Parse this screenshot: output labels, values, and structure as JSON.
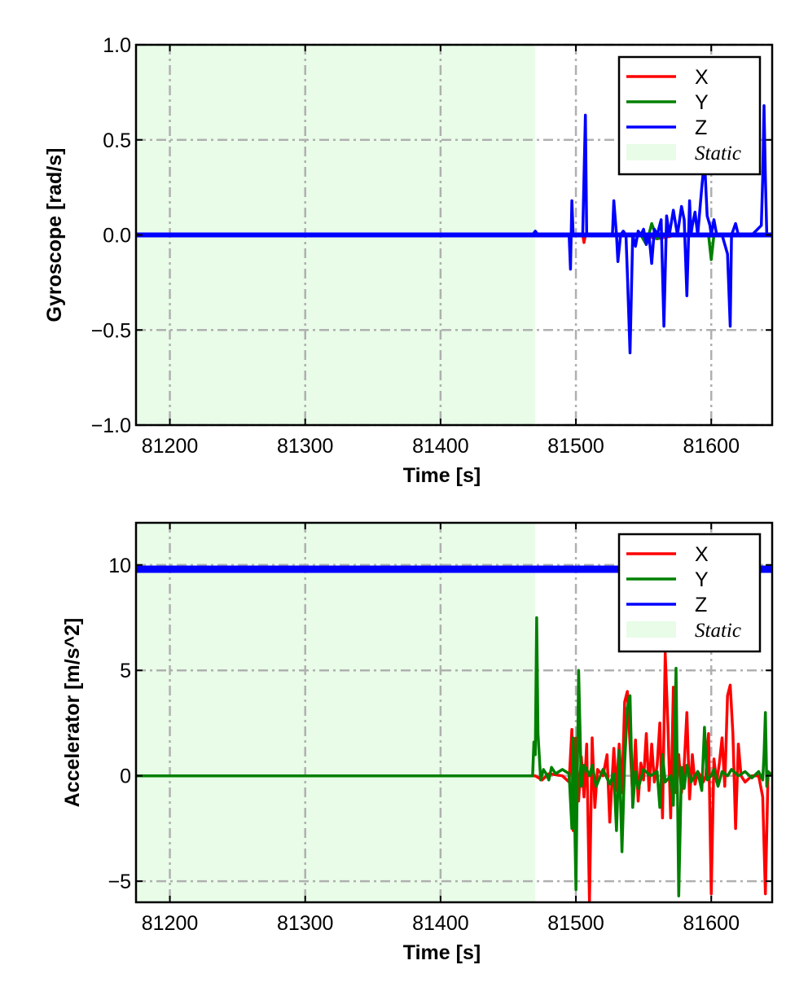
{
  "chart_data": [
    {
      "type": "line",
      "ylabel": "Gyroscope [rad/s]",
      "xlabel": "Time [s]",
      "xlim": [
        81175,
        81645
      ],
      "ylim": [
        -1.0,
        1.0
      ],
      "xticks": [
        81200,
        81300,
        81400,
        81500,
        81600
      ],
      "xtick_labels": [
        "81200",
        "81300",
        "81400",
        "81500",
        "81600"
      ],
      "yticks": [
        1.0,
        0.5,
        0.0,
        -0.5,
        -1.0
      ],
      "ytick_labels": [
        "1.0",
        "0.5",
        "0.0",
        "−0.5",
        "−1.0"
      ],
      "grid": true,
      "legend_position": "top-right",
      "static_region": {
        "label": "Static",
        "start": 81175,
        "end": 81470,
        "color": "#e8fce8"
      },
      "series": [
        {
          "name": "X",
          "color": "#ff0000",
          "x": [
            81175,
            81470,
            81478,
            81495,
            81505,
            81506,
            81507,
            81530,
            81545,
            81560,
            81575,
            81600,
            81620,
            81645
          ],
          "y": [
            0,
            0,
            0.005,
            0,
            0,
            -0.04,
            0,
            0,
            0.005,
            -0.02,
            0,
            0,
            0,
            0
          ]
        },
        {
          "name": "Y",
          "color": "#008000",
          "x": [
            81175,
            81470,
            81480,
            81548,
            81552,
            81556,
            81560,
            81565,
            81598,
            81600,
            81602,
            81605,
            81620,
            81645
          ],
          "y": [
            0,
            0,
            0.005,
            0,
            -0.05,
            0.06,
            -0.02,
            0,
            0,
            -0.13,
            0,
            0,
            0,
            0
          ]
        },
        {
          "name": "Z",
          "color": "#0000ff",
          "x": [
            81175,
            81468,
            81470,
            81472,
            81480,
            81495,
            81496,
            81497,
            81498,
            81500,
            81505,
            81507,
            81508,
            81510,
            81520,
            81527,
            81528,
            81530,
            81531,
            81533,
            81535,
            81537,
            81538,
            81540,
            81542,
            81544,
            81546,
            81548,
            81550,
            81552,
            81554,
            81556,
            81558,
            81560,
            81563,
            81565,
            81567,
            81569,
            81572,
            81575,
            81578,
            81580,
            81582,
            81584,
            81585,
            81586,
            81588,
            81590,
            81593,
            81595,
            81597,
            81599,
            81600,
            81602,
            81604,
            81606,
            81608,
            81612,
            81614,
            81615,
            81616,
            81618,
            81620,
            81622,
            81625,
            81630,
            81637,
            81638,
            81639,
            81640,
            81641,
            81642,
            81645
          ],
          "y": [
            0,
            0,
            0.02,
            0,
            0,
            0,
            -0.18,
            0.18,
            0,
            0,
            0,
            0.63,
            0,
            0,
            0,
            0,
            0.18,
            0,
            -0.14,
            0,
            0.02,
            0,
            -0.2,
            -0.62,
            0,
            -0.06,
            0.02,
            0,
            0.03,
            -0.05,
            0,
            -0.15,
            0.03,
            0,
            0.08,
            -0.48,
            0.1,
            0.0,
            0.13,
            0,
            0.15,
            0.08,
            -0.32,
            0.18,
            0.0,
            0.05,
            0.12,
            0.0,
            0.25,
            0.4,
            0.1,
            0.05,
            0.0,
            0.08,
            0.0,
            0.0,
            0.0,
            -0.1,
            -0.48,
            0.0,
            0.02,
            0.06,
            0.0,
            0.0,
            0.0,
            0.0,
            0.05,
            0.3,
            0.68,
            0.3,
            0.0,
            0.0,
            0.0
          ]
        }
      ],
      "legend": [
        {
          "label": "X",
          "color": "#ff0000",
          "kind": "line"
        },
        {
          "label": "Y",
          "color": "#008000",
          "kind": "line"
        },
        {
          "label": "Z",
          "color": "#0000ff",
          "kind": "line"
        },
        {
          "label": "Static",
          "color": "#e8fce8",
          "kind": "patch"
        }
      ]
    },
    {
      "type": "line",
      "ylabel": "Accelerator [m/s^2]",
      "xlabel": "Time [s]",
      "xlim": [
        81175,
        81645
      ],
      "ylim": [
        -6,
        12
      ],
      "xticks": [
        81200,
        81300,
        81400,
        81500,
        81600
      ],
      "xtick_labels": [
        "81200",
        "81300",
        "81400",
        "81500",
        "81600"
      ],
      "yticks": [
        10,
        5,
        0,
        -5
      ],
      "ytick_labels": [
        "10",
        "5",
        "0",
        "−5"
      ],
      "grid": true,
      "legend_position": "top-right",
      "static_region": {
        "label": "Static",
        "start": 81175,
        "end": 81470,
        "color": "#e8fce8"
      },
      "series": [
        {
          "name": "X",
          "color": "#ff0000",
          "x": [
            81175,
            81470,
            81475,
            81480,
            81490,
            81495,
            81497,
            81498,
            81500,
            81502,
            81504,
            81506,
            81508,
            81510,
            81512,
            81514,
            81516,
            81520,
            81523,
            81525,
            81528,
            81530,
            81532,
            81534,
            81536,
            81538,
            81540,
            81542,
            81544,
            81546,
            81548,
            81550,
            81552,
            81554,
            81556,
            81558,
            81560,
            81562,
            81564,
            81566,
            81568,
            81570,
            81572,
            81574,
            81576,
            81578,
            81580,
            81582,
            81584,
            81586,
            81588,
            81590,
            81592,
            81594,
            81596,
            81598,
            81600,
            81602,
            81604,
            81606,
            81608,
            81610,
            81612,
            81614,
            81616,
            81618,
            81620,
            81622,
            81625,
            81630,
            81635,
            81638,
            81640,
            81642,
            81645
          ],
          "y": [
            0,
            0,
            -0.2,
            0.1,
            0,
            -0.3,
            2.2,
            -2.6,
            1.8,
            -1.2,
            0.9,
            -1.0,
            1.5,
            -6.0,
            1.8,
            -1.5,
            0.3,
            0,
            1.0,
            -2.2,
            1.3,
            -0.7,
            1.5,
            -0.8,
            3.5,
            4.0,
            1.5,
            -1.0,
            1.7,
            -1.2,
            0.6,
            -0.2,
            2.0,
            -0.7,
            1.5,
            -0.3,
            0.5,
            2.5,
            -2.0,
            5.8,
            2.4,
            -2.0,
            4.2,
            -0.8,
            1.0,
            -0.8,
            0.5,
            3.0,
            -1.1,
            1.0,
            -0.4,
            0.2,
            0,
            -0.3,
            0,
            2.0,
            -5.6,
            0.8,
            -0.3,
            0.6,
            1.8,
            -0.5,
            3.8,
            4.3,
            2.0,
            -2.5,
            1.5,
            0.0,
            -0.3,
            0.0,
            0.0,
            -1.0,
            -5.6,
            0.2,
            0.0
          ]
        },
        {
          "name": "Y",
          "color": "#008000",
          "x": [
            81175,
            81468,
            81469,
            81470,
            81471,
            81472,
            81474,
            81476,
            81478,
            81480,
            81482,
            81485,
            81490,
            81495,
            81497,
            81498,
            81500,
            81502,
            81504,
            81506,
            81508,
            81510,
            81512,
            81515,
            81520,
            81525,
            81528,
            81530,
            81532,
            81534,
            81536,
            81538,
            81540,
            81542,
            81544,
            81546,
            81550,
            81555,
            81560,
            81562,
            81564,
            81566,
            81570,
            81572,
            81574,
            81576,
            81578,
            81580,
            81582,
            81585,
            81590,
            81593,
            81595,
            81597,
            81600,
            81602,
            81605,
            81608,
            81612,
            81615,
            81620,
            81625,
            81630,
            81635,
            81638,
            81639,
            81640,
            81641,
            81642,
            81645
          ],
          "y": [
            0,
            0,
            1.6,
            1.0,
            7.5,
            2.0,
            -0.2,
            0.3,
            0.1,
            -0.2,
            0.4,
            0.1,
            0.3,
            0.1,
            -2.5,
            1.8,
            -5.4,
            5.0,
            -0.5,
            0.5,
            0.3,
            0.0,
            0.5,
            -0.5,
            0.3,
            -0.4,
            0.1,
            -2.6,
            1.2,
            -3.6,
            0.6,
            3.2,
            3.8,
            -1.5,
            0.2,
            -0.6,
            0.3,
            0.0,
            0.2,
            -1.5,
            1.0,
            -0.3,
            0.0,
            -1.4,
            5.1,
            -5.7,
            0.4,
            -0.6,
            0.5,
            -0.3,
            0.2,
            -0.7,
            2.3,
            -0.2,
            0.0,
            0.3,
            -0.5,
            0.2,
            0.0,
            0.3,
            0.0,
            0.2,
            -0.1,
            0.2,
            -0.2,
            1.0,
            3.0,
            -0.5,
            0.2,
            0.0
          ]
        },
        {
          "name": "Z",
          "color": "#0000ff",
          "x": [
            81175,
            81645
          ],
          "y": [
            9.8,
            9.8
          ]
        }
      ],
      "legend": [
        {
          "label": "X",
          "color": "#ff0000",
          "kind": "line"
        },
        {
          "label": "Y",
          "color": "#008000",
          "kind": "line"
        },
        {
          "label": "Z",
          "color": "#0000ff",
          "kind": "line"
        },
        {
          "label": "Static",
          "color": "#e8fce8",
          "kind": "patch"
        }
      ]
    }
  ]
}
